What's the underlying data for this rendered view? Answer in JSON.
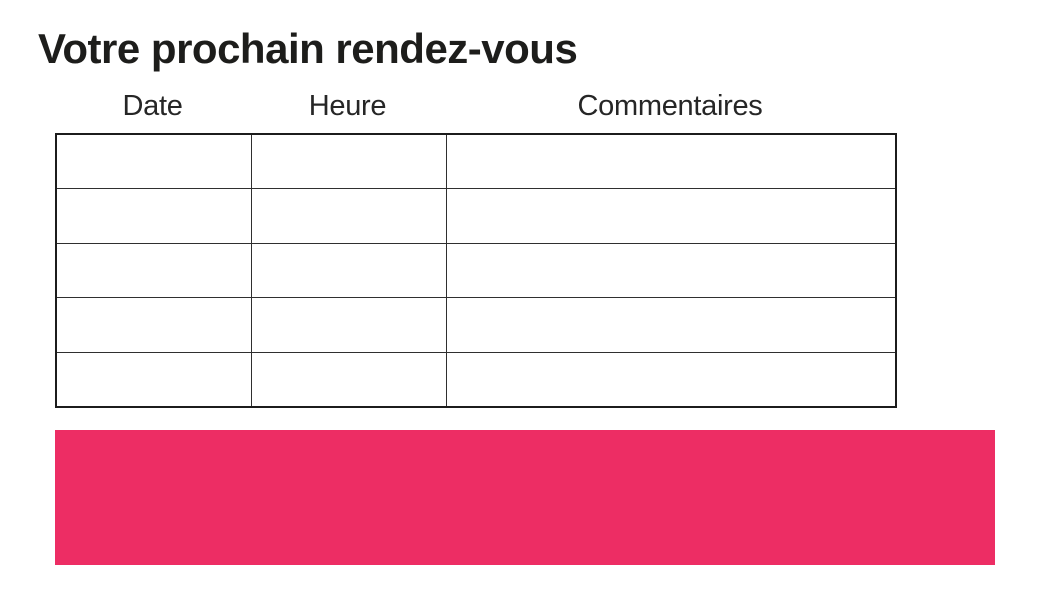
{
  "document": {
    "title": "Votre prochain rendez-vous"
  },
  "appointments_table": {
    "columns": [
      "Date",
      "Heure",
      "Commentaires"
    ],
    "rows": [
      {
        "date": "",
        "heure": "",
        "commentaires": ""
      },
      {
        "date": "",
        "heure": "",
        "commentaires": ""
      },
      {
        "date": "",
        "heure": "",
        "commentaires": ""
      },
      {
        "date": "",
        "heure": "",
        "commentaires": ""
      },
      {
        "date": "",
        "heure": "",
        "commentaires": ""
      }
    ],
    "row_count": 5
  },
  "banner": {
    "text": "",
    "color": "#ed2d64"
  },
  "colors": {
    "accent": "#ed2d64",
    "text": "#1d1d1b",
    "table_border": "#2f2f2f",
    "background": "#ffffff"
  }
}
